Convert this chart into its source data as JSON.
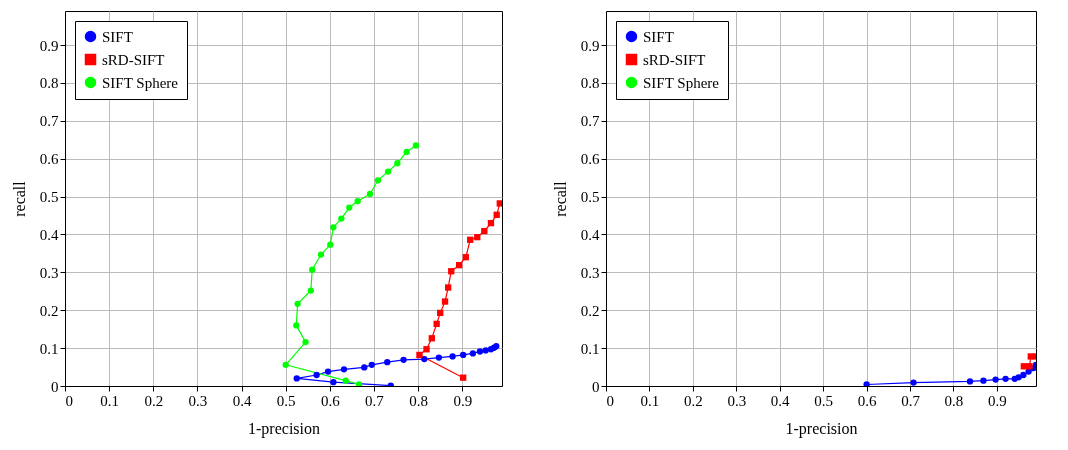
{
  "chart_data": [
    {
      "type": "line",
      "xlabel": "1-precision",
      "ylabel": "recall",
      "xlim": [
        0,
        0.99
      ],
      "ylim": [
        0,
        0.99
      ],
      "xticks": [
        0,
        0.1,
        0.2,
        0.3,
        0.4,
        0.5,
        0.6,
        0.7,
        0.8,
        0.9
      ],
      "yticks": [
        0,
        0.1,
        0.2,
        0.3,
        0.4,
        0.5,
        0.6,
        0.7,
        0.8,
        0.9
      ],
      "grid": true,
      "legend": "top left",
      "series": [
        {
          "name": "SIFT",
          "color": "#0000ff",
          "marker": "circle",
          "x": [
            0.738,
            0.608,
            0.525,
            0.57,
            0.596,
            0.632,
            0.678,
            0.695,
            0.73,
            0.767,
            0.814,
            0.847,
            0.878,
            0.902,
            0.924,
            0.94,
            0.953,
            0.965,
            0.972,
            0.977
          ],
          "values": [
            0.001,
            0.01,
            0.02,
            0.029,
            0.038,
            0.044,
            0.049,
            0.056,
            0.063,
            0.069,
            0.071,
            0.075,
            0.078,
            0.082,
            0.086,
            0.091,
            0.094,
            0.097,
            0.101,
            0.105
          ]
        },
        {
          "name": "sRD-SIFT",
          "color": "#ff0000",
          "marker": "square",
          "x": [
            0.902,
            0.803,
            0.819,
            0.831,
            0.842,
            0.85,
            0.861,
            0.868,
            0.875,
            0.893,
            0.908,
            0.918,
            0.934,
            0.95,
            0.965,
            0.978,
            0.985
          ],
          "values": [
            0.022,
            0.082,
            0.097,
            0.126,
            0.164,
            0.193,
            0.223,
            0.26,
            0.303,
            0.319,
            0.34,
            0.386,
            0.393,
            0.409,
            0.43,
            0.452,
            0.482
          ]
        },
        {
          "name": "SIFT Sphere",
          "color": "#00ff00",
          "marker": "circle",
          "x": [
            0.666,
            0.636,
            0.5,
            0.545,
            0.524,
            0.527,
            0.557,
            0.56,
            0.58,
            0.601,
            0.608,
            0.626,
            0.644,
            0.663,
            0.691,
            0.709,
            0.732,
            0.753,
            0.774,
            0.795
          ],
          "values": [
            0.004,
            0.014,
            0.056,
            0.116,
            0.16,
            0.217,
            0.252,
            0.307,
            0.347,
            0.373,
            0.419,
            0.442,
            0.471,
            0.488,
            0.507,
            0.543,
            0.566,
            0.588,
            0.618,
            0.635
          ]
        }
      ]
    },
    {
      "type": "line",
      "xlabel": "1-precision",
      "ylabel": "recall",
      "xlim": [
        0,
        0.99
      ],
      "ylim": [
        0,
        0.99
      ],
      "xticks": [
        0,
        0.1,
        0.2,
        0.3,
        0.4,
        0.5,
        0.6,
        0.7,
        0.8,
        0.9
      ],
      "yticks": [
        0,
        0.1,
        0.2,
        0.3,
        0.4,
        0.5,
        0.6,
        0.7,
        0.8,
        0.9
      ],
      "grid": true,
      "legend": "top left",
      "series": [
        {
          "name": "SIFT",
          "color": "#0000ff",
          "marker": "circle",
          "x": [
            0.6,
            0.708,
            0.838,
            0.869,
            0.897,
            0.92,
            0.941,
            0.95,
            0.961,
            0.973,
            0.984,
            0.99
          ],
          "values": [
            0.004,
            0.009,
            0.012,
            0.014,
            0.017,
            0.019,
            0.019,
            0.023,
            0.029,
            0.038,
            0.047,
            0.056
          ]
        },
        {
          "name": "sRD-SIFT",
          "color": "#ff0000",
          "marker": "square",
          "x": [
            0.962,
            0.975,
            0.978,
            0.99
          ],
          "values": [
            0.052,
            0.052,
            0.078,
            0.078
          ]
        },
        {
          "name": "SIFT Sphere",
          "color": "#00ff00",
          "marker": "circle"
        }
      ]
    }
  ]
}
